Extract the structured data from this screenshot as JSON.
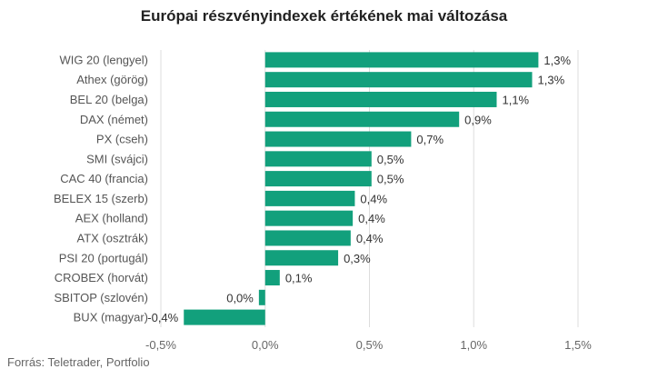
{
  "chart_data": {
    "type": "bar",
    "orientation": "horizontal",
    "title": "Európai részvényindexek értékének mai változása",
    "categories": [
      "WIG 20 (lengyel)",
      "Athex (görög)",
      "BEL 20 (belga)",
      "DAX (német)",
      "PX (cseh)",
      "SMI (svájci)",
      "CAC 40 (francia)",
      "BELEX 15 (szerb)",
      "AEX (holland)",
      "ATX (osztrák)",
      "PSI 20 (portugál)",
      "CROBEX (horvát)",
      "SBITOP (szlovén)",
      "BUX (magyar)"
    ],
    "values": [
      1.31,
      1.28,
      1.11,
      0.93,
      0.7,
      0.51,
      0.51,
      0.43,
      0.42,
      0.41,
      0.35,
      0.07,
      -0.03,
      -0.39
    ],
    "value_labels": [
      "1,3%",
      "1,3%",
      "1,1%",
      "0,9%",
      "0,7%",
      "0,5%",
      "0,5%",
      "0,4%",
      "0,4%",
      "0,4%",
      "0,3%",
      "0,1%",
      "0,0%",
      "-0,4%"
    ],
    "xlim": [
      -0.5,
      1.5
    ],
    "xticks": [
      -0.5,
      0,
      0.5,
      1.0,
      1.5
    ],
    "xtick_labels": [
      "-0,5%",
      "0,0%",
      "0,5%",
      "1,0%",
      "1,5%"
    ],
    "grid": true,
    "legend": "none",
    "bar_color": "#12a07c",
    "source": "Forrás: Teletrader, Portfolio"
  }
}
